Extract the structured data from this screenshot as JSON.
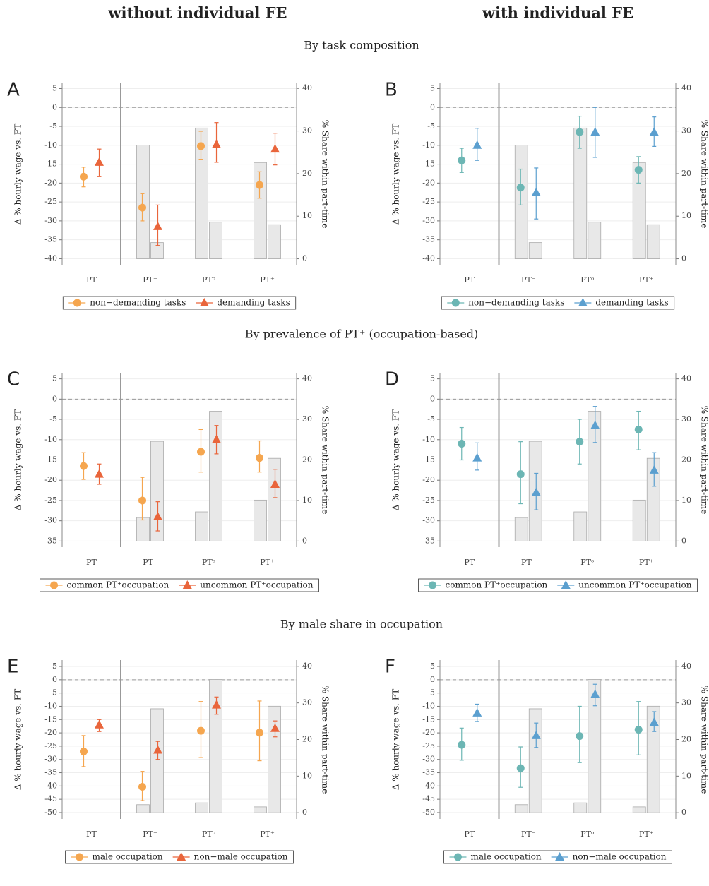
{
  "column_titles": [
    "without individual FE",
    "with individual FE"
  ],
  "section_titles": [
    "By task composition",
    "By prevalence of PT⁺ (occupation-based)",
    "By male share in occupation"
  ],
  "chart_data": [
    {
      "type": "errorbar",
      "label": "A",
      "ylabel": "Δ % hourly wage vs. FT",
      "y2label": "% Share within part-time",
      "categories": [
        "PT",
        "PT⁻",
        "PTᵒ",
        "PT⁺"
      ],
      "ylim": [
        -41.6,
        6.4
      ],
      "yticks": [
        5,
        0,
        -5,
        -10,
        -15,
        -20,
        -25,
        -30,
        -35,
        -40
      ],
      "y2lim": [
        -1.4,
        41.2
      ],
      "y2ticks": [
        0,
        10,
        20,
        30,
        40
      ],
      "reference_line": 0,
      "series": [
        {
          "name": "non−demanding tasks",
          "color": "#f5a64f",
          "marker": "circle",
          "values": [
            -18.3,
            -26.5,
            -10.2,
            -20.5
          ],
          "lower": [
            -21,
            -30,
            -13.7,
            -24
          ],
          "upper": [
            -15.8,
            -22.8,
            -6.3,
            -17
          ]
        },
        {
          "name": "demanding tasks",
          "color": "#e9653b",
          "marker": "triangle",
          "values": [
            -14.5,
            -31.5,
            -9.8,
            -11
          ],
          "lower": [
            -18.3,
            -36.5,
            -14.5,
            -15.2
          ],
          "upper": [
            -11,
            -25.8,
            -4,
            -6.8
          ]
        }
      ],
      "bar_series": [
        {
          "axis": "y2",
          "color": "#e8e8e8",
          "values": [
            null,
            26.7,
            30.7,
            22.6
          ]
        },
        {
          "axis": "y2",
          "color": "#e8e8e8",
          "values": [
            null,
            3.8,
            8.6,
            8.0
          ]
        }
      ]
    },
    {
      "type": "errorbar",
      "label": "B",
      "ylabel": "Δ % hourly wage vs. FT",
      "y2label": "% Share within part-time",
      "categories": [
        "PT",
        "PT⁻",
        "PTᵒ",
        "PT⁺"
      ],
      "ylim": [
        -41.6,
        6.4
      ],
      "yticks": [
        5,
        0,
        -5,
        -10,
        -15,
        -20,
        -25,
        -30,
        -35,
        -40
      ],
      "y2lim": [
        -1.4,
        41.2
      ],
      "y2ticks": [
        0,
        10,
        20,
        30,
        40
      ],
      "reference_line": 0,
      "series": [
        {
          "name": "non−demanding tasks",
          "color": "#6cb6b4",
          "marker": "circle",
          "values": [
            -14,
            -21.2,
            -6.5,
            -16.5
          ],
          "lower": [
            -17.2,
            -25.8,
            -10.8,
            -20
          ],
          "upper": [
            -10.8,
            -16.3,
            -2.3,
            -13
          ]
        },
        {
          "name": "demanding tasks",
          "color": "#5b9fcf",
          "marker": "triangle",
          "values": [
            -10,
            -22.5,
            -6.5,
            -6.5
          ],
          "lower": [
            -14,
            -29.5,
            -13.2,
            -10.3
          ],
          "upper": [
            -5.5,
            -16,
            0,
            -2.5
          ]
        }
      ],
      "bar_series": [
        {
          "axis": "y2",
          "color": "#e8e8e8",
          "values": [
            null,
            26.7,
            30.7,
            22.6
          ]
        },
        {
          "axis": "y2",
          "color": "#e8e8e8",
          "values": [
            null,
            3.8,
            8.6,
            8.0
          ]
        }
      ]
    },
    {
      "type": "errorbar",
      "label": "C",
      "ylabel": "Δ % hourly wage vs. FT",
      "y2label": "% Share within part-time",
      "categories": [
        "PT",
        "PT⁻",
        "PTᵒ",
        "PT⁺"
      ],
      "ylim": [
        -36.5,
        6.5
      ],
      "yticks": [
        5,
        0,
        -5,
        -10,
        -15,
        -20,
        -25,
        -30,
        -35
      ],
      "y2lim": [
        -1.5,
        41.5
      ],
      "y2ticks": [
        0,
        10,
        20,
        30,
        40
      ],
      "reference_line": 0,
      "series": [
        {
          "name": "common PT⁺occupation",
          "color": "#f5a64f",
          "marker": "circle",
          "values": [
            -16.5,
            -25,
            -13,
            -14.5
          ],
          "lower": [
            -19.8,
            -29.8,
            -18,
            -18
          ],
          "upper": [
            -13.2,
            -19.3,
            -7.5,
            -10.3
          ]
        },
        {
          "name": "uncommon PT⁺occupation",
          "color": "#e9653b",
          "marker": "triangle",
          "values": [
            -18.5,
            -29,
            -10,
            -21
          ],
          "lower": [
            -21,
            -32.5,
            -13.5,
            -24.3
          ],
          "upper": [
            -16,
            -25.3,
            -6.5,
            -17.3
          ]
        }
      ],
      "bar_series": [
        {
          "axis": "y2",
          "color": "#e8e8e8",
          "values": [
            null,
            5.8,
            7.2,
            10.1
          ]
        },
        {
          "axis": "y2",
          "color": "#e8e8e8",
          "values": [
            null,
            24.6,
            32,
            20.4
          ]
        }
      ]
    },
    {
      "type": "errorbar",
      "label": "D",
      "ylabel": "Δ % hourly wage vs. FT",
      "y2label": "% Share within part-time",
      "categories": [
        "PT",
        "PT⁻",
        "PTᵒ",
        "PT⁺"
      ],
      "ylim": [
        -36.5,
        6.5
      ],
      "yticks": [
        5,
        0,
        -5,
        -10,
        -15,
        -20,
        -25,
        -30,
        -35
      ],
      "y2lim": [
        -1.5,
        41.5
      ],
      "y2ticks": [
        0,
        10,
        20,
        30,
        40
      ],
      "reference_line": 0,
      "series": [
        {
          "name": "common PT⁺occupation",
          "color": "#6cb6b4",
          "marker": "circle",
          "values": [
            -11,
            -18.5,
            -10.5,
            -7.5
          ],
          "lower": [
            -15,
            -25.8,
            -16,
            -12.5
          ],
          "upper": [
            -7,
            -10.5,
            -5,
            -3
          ]
        },
        {
          "name": "uncommon PT⁺occupation",
          "color": "#5b9fcf",
          "marker": "triangle",
          "values": [
            -14.5,
            -23,
            -6.5,
            -17.5
          ],
          "lower": [
            -17.5,
            -27.3,
            -10.7,
            -21.5
          ],
          "upper": [
            -10.8,
            -18.3,
            -1.8,
            -13.2
          ]
        }
      ],
      "bar_series": [
        {
          "axis": "y2",
          "color": "#e8e8e8",
          "values": [
            null,
            5.8,
            7.2,
            10.1
          ]
        },
        {
          "axis": "y2",
          "color": "#e8e8e8",
          "values": [
            null,
            24.6,
            32,
            20.4
          ]
        }
      ]
    },
    {
      "type": "errorbar",
      "label": "E",
      "ylabel": "Δ % hourly wage vs. FT",
      "y2label": "% Share within part-time",
      "categories": [
        "PT",
        "PT⁻",
        "PTᵒ",
        "PT⁺"
      ],
      "ylim": [
        -52.4,
        7.4
      ],
      "yticks": [
        5,
        0,
        -5,
        -10,
        -15,
        -20,
        -25,
        -30,
        -35,
        -40,
        -45,
        -50
      ],
      "y2lim": [
        -1.7,
        41.7
      ],
      "y2ticks": [
        0,
        10,
        20,
        30,
        40
      ],
      "reference_line": 0,
      "series": [
        {
          "name": "male occupation",
          "color": "#f5a64f",
          "marker": "circle",
          "values": [
            -27,
            -40.3,
            -19.2,
            -19.9
          ],
          "lower": [
            -32.7,
            -45.5,
            -29.3,
            -30.5
          ],
          "upper": [
            -21,
            -34.5,
            -8.2,
            -8
          ]
        },
        {
          "name": "non−male occupation",
          "color": "#e9653b",
          "marker": "triangle",
          "values": [
            -17,
            -26.5,
            -9.5,
            -18.3
          ],
          "lower": [
            -19.5,
            -30,
            -13,
            -21.5
          ],
          "upper": [
            -15,
            -23.2,
            -6.5,
            -15.5
          ]
        }
      ],
      "bar_series": [
        {
          "axis": "y2",
          "color": "#e8e8e8",
          "values": [
            null,
            2.2,
            2.7,
            1.6
          ]
        },
        {
          "axis": "y2",
          "color": "#e8e8e8",
          "values": [
            null,
            28.4,
            36.4,
            29.1
          ]
        }
      ]
    },
    {
      "type": "errorbar",
      "label": "F",
      "ylabel": "Δ % hourly wage vs. FT",
      "y2label": "% Share within part-time",
      "categories": [
        "PT",
        "PT⁻",
        "PTᵒ",
        "PT⁺"
      ],
      "ylim": [
        -52.4,
        7.4
      ],
      "yticks": [
        5,
        0,
        -5,
        -10,
        -15,
        -20,
        -25,
        -30,
        -35,
        -40,
        -45,
        -50
      ],
      "y2lim": [
        -1.7,
        41.7
      ],
      "y2ticks": [
        0,
        10,
        20,
        30,
        40
      ],
      "reference_line": 0,
      "series": [
        {
          "name": "male occupation",
          "color": "#6cb6b4",
          "marker": "circle",
          "values": [
            -24.5,
            -33.3,
            -21.2,
            -18.8
          ],
          "lower": [
            -30.3,
            -40.5,
            -31.2,
            -28.3
          ],
          "upper": [
            -18.2,
            -25.3,
            -10,
            -8.2
          ]
        },
        {
          "name": "non−male occupation",
          "color": "#5b9fcf",
          "marker": "triangle",
          "values": [
            -12.5,
            -21,
            -5.5,
            -16
          ],
          "lower": [
            -15.7,
            -25.5,
            -9.8,
            -19.5
          ],
          "upper": [
            -9.2,
            -16.3,
            -1.7,
            -12
          ]
        }
      ],
      "bar_series": [
        {
          "axis": "y2",
          "color": "#e8e8e8",
          "values": [
            null,
            2.2,
            2.7,
            1.6
          ]
        },
        {
          "axis": "y2",
          "color": "#e8e8e8",
          "values": [
            null,
            28.4,
            36.4,
            29.1
          ]
        }
      ]
    }
  ]
}
